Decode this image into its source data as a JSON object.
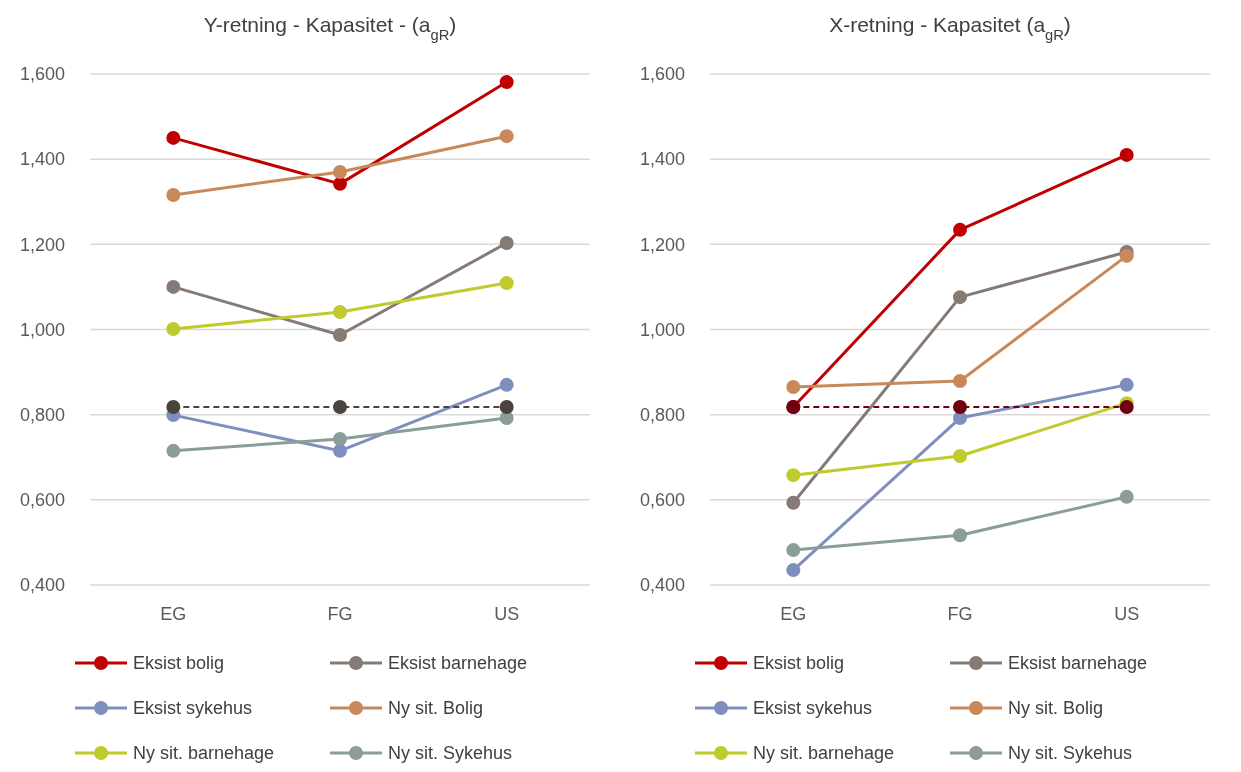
{
  "chart_data": [
    {
      "type": "line",
      "title": "Y-retning - Kapasitet - (a$_{gR}$)",
      "categories": [
        "EG",
        "FG",
        "US"
      ],
      "ylim": [
        0.4,
        1.6
      ],
      "yticks": [
        {
          "value": 0.4,
          "label": "0,400"
        },
        {
          "value": 0.6,
          "label": "0,600"
        },
        {
          "value": 0.8,
          "label": "0,800"
        },
        {
          "value": 1.0,
          "label": "1,000"
        },
        {
          "value": 1.2,
          "label": "1,200"
        },
        {
          "value": 1.4,
          "label": "1,400"
        },
        {
          "value": 1.6,
          "label": "1,600"
        }
      ],
      "grid": "y",
      "legend": "bottom",
      "marker": "circle",
      "line_style": "solid",
      "series": [
        {
          "name": "Eksist bolig",
          "color": "#c00000",
          "values": [
            1.45,
            1.342,
            1.581
          ]
        },
        {
          "name": "Eksist barnehage",
          "color": "#857a74",
          "values": [
            1.1,
            0.987,
            1.203
          ]
        },
        {
          "name": "Eksist sykehus",
          "color": "#7f8fbd",
          "values": [
            0.799,
            0.715,
            0.87
          ]
        },
        {
          "name": "Ny sit. Bolig",
          "color": "#c8885a",
          "values": [
            1.316,
            1.37,
            1.454
          ]
        },
        {
          "name": "Ny sit. barnehage",
          "color": "#bfca2c",
          "values": [
            1.001,
            1.041,
            1.109
          ]
        },
        {
          "name": "Ny sit. Sykehus",
          "color": "#8a9d99",
          "values": [
            0.715,
            0.743,
            0.792
          ]
        },
        {
          "color": "#4a4340",
          "line_style": "dashed",
          "values": [
            0.818,
            0.818,
            0.818
          ]
        }
      ]
    },
    {
      "type": "line",
      "title": "X-retning - Kapasitet (a$_{gR}$)",
      "categories": [
        "EG",
        "FG",
        "US"
      ],
      "ylim": [
        0.4,
        1.6
      ],
      "yticks": [
        {
          "value": 0.4,
          "label": "0,400"
        },
        {
          "value": 0.6,
          "label": "0,600"
        },
        {
          "value": 0.8,
          "label": "0,800"
        },
        {
          "value": 1.0,
          "label": "1,000"
        },
        {
          "value": 1.2,
          "label": "1,200"
        },
        {
          "value": 1.4,
          "label": "1,400"
        },
        {
          "value": 1.6,
          "label": "1,600"
        }
      ],
      "grid": "y",
      "legend": "bottom",
      "marker": "circle",
      "line_style": "solid",
      "series": [
        {
          "name": "Eksist bolig",
          "color": "#c00000",
          "values": [
            0.818,
            1.234,
            1.41
          ]
        },
        {
          "name": "Eksist barnehage",
          "color": "#857a74",
          "values": [
            0.593,
            1.076,
            1.182
          ]
        },
        {
          "name": "Eksist sykehus",
          "color": "#7f8fbd",
          "values": [
            0.435,
            0.792,
            0.87
          ]
        },
        {
          "name": "Ny sit. Bolig",
          "color": "#c8885a",
          "values": [
            0.865,
            0.879,
            1.173
          ]
        },
        {
          "name": "Ny sit. barnehage",
          "color": "#bfca2c",
          "values": [
            0.658,
            0.703,
            0.827
          ]
        },
        {
          "name": "Ny sit. Sykehus",
          "color": "#8a9d99",
          "values": [
            0.482,
            0.517,
            0.607
          ]
        },
        {
          "color": "#700010",
          "line_style": "dashed",
          "values": [
            0.818,
            0.818,
            0.818
          ]
        }
      ]
    }
  ]
}
